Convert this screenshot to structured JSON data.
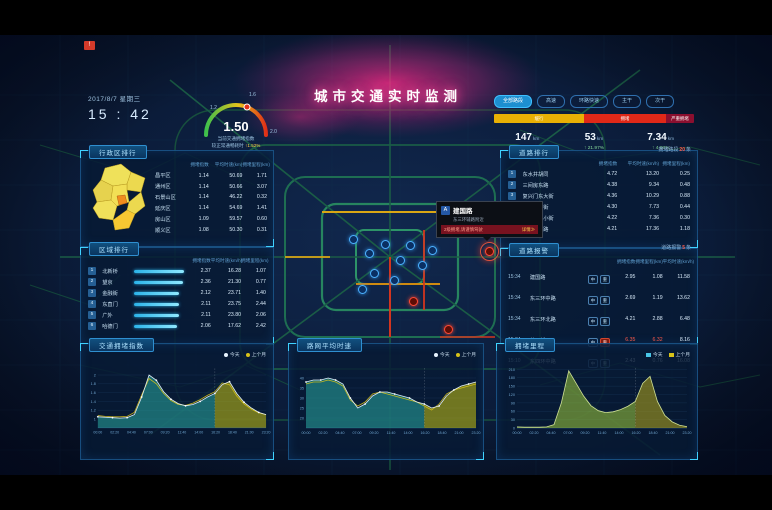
{
  "meta": {
    "date": "2017/8/7 星期三",
    "time": "15 : 42",
    "alert_flag": "!"
  },
  "title": "城市交通实时监测",
  "gauge": {
    "value": "1.50",
    "ticks": [
      "1.2",
      "1.6",
      "2.0"
    ],
    "label1": "当前交通拥堵指数",
    "label2_prefix": "较正常通畅耗时",
    "label2_delta": "↑1.52%"
  },
  "road_filters": {
    "buttons": [
      {
        "label": "全部路段",
        "active": true
      },
      {
        "label": "高速",
        "active": false
      },
      {
        "label": "环路快速",
        "active": false
      },
      {
        "label": "主干",
        "active": false
      },
      {
        "label": "次干",
        "active": false
      }
    ]
  },
  "congestion_bar": {
    "segments": [
      {
        "label": "缓行",
        "color": "#e8b004",
        "pct": 45
      },
      {
        "label": "拥堵",
        "color": "#e02818",
        "pct": 41
      },
      {
        "label": "严重拥堵",
        "color": "#8b0f2f",
        "pct": 14
      }
    ],
    "stats": [
      {
        "value": "147",
        "unit": "km",
        "delta": "↑ 24.98%"
      },
      {
        "value": "53",
        "unit": "km",
        "delta": "↑ 21.97%"
      },
      {
        "value": "7.34",
        "unit": "km",
        "delta": "↑ 4.08%"
      }
    ]
  },
  "district_panel": {
    "title": "行政区排行",
    "headers": [
      "拥堵指数",
      "平均时速(km)",
      "拥堵里程(km)"
    ],
    "rows": [
      {
        "name": "昌平区",
        "values": [
          "1.14",
          "50.69",
          "1.71"
        ]
      },
      {
        "name": "通州区",
        "values": [
          "1.14",
          "50.66",
          "3.07"
        ]
      },
      {
        "name": "石景山区",
        "values": [
          "1.14",
          "46.22",
          "0.32"
        ]
      },
      {
        "name": "延庆区",
        "values": [
          "1.14",
          "54.69",
          "1.41"
        ]
      },
      {
        "name": "房山区",
        "values": [
          "1.09",
          "59.57",
          "0.60"
        ]
      },
      {
        "name": "顺义区",
        "values": [
          "1.08",
          "50.30",
          "0.31"
        ]
      }
    ]
  },
  "area_panel": {
    "title": "区域排行",
    "headers": [
      "拥堵指数",
      "平均时速(km/h)",
      "拥堵里程(km)"
    ],
    "rows": [
      {
        "rank": "1",
        "name": "北新桥",
        "bar_pct": 100,
        "values": [
          "2.37",
          "16.28",
          "1.07"
        ]
      },
      {
        "rank": "2",
        "name": "望京",
        "bar_pct": 98,
        "values": [
          "2.36",
          "21.30",
          "0.77"
        ]
      },
      {
        "rank": "3",
        "name": "金融街",
        "bar_pct": 90,
        "values": [
          "2.12",
          "23.71",
          "1.40"
        ]
      },
      {
        "rank": "4",
        "name": "东直门",
        "bar_pct": 89,
        "values": [
          "2.11",
          "23.75",
          "2.44"
        ]
      },
      {
        "rank": "5",
        "name": "广外",
        "bar_pct": 89,
        "values": [
          "2.11",
          "23.80",
          "2.06"
        ]
      },
      {
        "rank": "6",
        "name": "哈德门",
        "bar_pct": 86,
        "values": [
          "2.06",
          "17.62",
          "2.42"
        ]
      }
    ]
  },
  "road_panel": {
    "title": "道路排行",
    "note_prefix": "拥堵路段",
    "note_count": "20",
    "note_suffix": "条",
    "headers": [
      "拥堵指数",
      "平均时速(km/h)",
      "拥堵里程(km)"
    ],
    "rows": [
      {
        "rank": "1",
        "name": "东水井胡同",
        "values": [
          "4.72",
          "13.20",
          "0.25"
        ]
      },
      {
        "rank": "2",
        "name": "三间房东路",
        "values": [
          "4.38",
          "9.34",
          "0.48"
        ]
      },
      {
        "rank": "3",
        "name": "复兴门东大街",
        "values": [
          "4.36",
          "10.29",
          "0.88"
        ]
      },
      {
        "rank": "4",
        "name": "西单北大街",
        "values": [
          "4.30",
          "7.73",
          "0.44"
        ]
      },
      {
        "rank": "5",
        "name": "西直门南小街",
        "values": [
          "4.22",
          "7.36",
          "0.30"
        ]
      },
      {
        "rank": "6",
        "name": "东三环中路",
        "values": [
          "4.21",
          "17.36",
          "1.18"
        ]
      }
    ]
  },
  "alert_panel": {
    "title": "道路报警",
    "note_prefix": "道路报警",
    "note_count": "5",
    "note_suffix": "条",
    "headers": [
      "拥堵指数",
      "拥堵里程(km)",
      "平均时速(km/h)"
    ],
    "rows": [
      {
        "time": "15:34",
        "name": "建国路",
        "badges": [
          "中",
          "重"
        ],
        "values": [
          "2.95",
          "1.08",
          "11.58"
        ],
        "alert": false
      },
      {
        "time": "15:34",
        "name": "东三环中路",
        "badges": [
          "中",
          "重"
        ],
        "values": [
          "2.69",
          "1.19",
          "13.62"
        ],
        "alert": false
      },
      {
        "time": "15:34",
        "name": "东三环北路",
        "badges": [
          "中",
          "重"
        ],
        "values": [
          "4.21",
          "2.88",
          "6.48"
        ],
        "alert": false
      },
      {
        "time": "15:34",
        "name": "莲玉桥西",
        "badges": [
          "中",
          "重"
        ],
        "values": [
          "6.35",
          "6.32",
          "8.16"
        ],
        "alert": true
      },
      {
        "time": "15:10",
        "name": "东四环中路",
        "badges": [
          "中",
          "重"
        ],
        "values": [
          "2.43",
          "0.76",
          "16.08"
        ],
        "alert": false
      }
    ]
  },
  "tooltip": {
    "icon": "A",
    "name": "建国路",
    "sub": "东三环辅路附近",
    "alert_text": "2级拥堵,请谨慎驾驶",
    "more": "详情≫"
  },
  "chart_data": [
    {
      "type": "area",
      "title": "交通拥堵指数",
      "legend": [
        "今天",
        "上个月"
      ],
      "legend_style": "dot",
      "x": [
        "00:00",
        "02:20",
        "04:40",
        "07:00",
        "09:20",
        "11:40",
        "14:00",
        "16:20",
        "18:40",
        "21:00",
        "23:20"
      ],
      "ylim": [
        0.8,
        2.15
      ],
      "yticks": [
        2,
        1.8,
        1.6,
        1.4,
        1.2,
        1
      ],
      "split_index": 16,
      "dots": true,
      "series": [
        {
          "name": "今天",
          "values": [
            1.05,
            1.04,
            1.03,
            1.02,
            1.03,
            1.1,
            1.5,
            2.0,
            1.88,
            1.62,
            1.45,
            1.35,
            1.3,
            1.33,
            1.4,
            1.5,
            1.58,
            1.78,
            1.85,
            1.58,
            1.38,
            1.25,
            1.15,
            1.1
          ]
        },
        {
          "name": "上个月",
          "values": [
            1.08,
            1.06,
            1.05,
            1.05,
            1.06,
            1.15,
            1.55,
            1.92,
            1.8,
            1.58,
            1.42,
            1.33,
            1.31,
            1.36,
            1.44,
            1.54,
            1.62,
            1.82,
            1.78,
            1.52,
            1.34,
            1.22,
            1.14,
            1.1
          ]
        }
      ]
    },
    {
      "type": "area",
      "title": "路网平均时速",
      "legend": [
        "今天",
        "上个月"
      ],
      "legend_style": "dot",
      "x": [
        "00:00",
        "02:20",
        "04:40",
        "07:00",
        "09:20",
        "11:40",
        "14:00",
        "16:20",
        "18:40",
        "21:00",
        "23:20"
      ],
      "ylim": [
        15,
        45
      ],
      "yticks": [
        40,
        35,
        30,
        25,
        20
      ],
      "split_index": 16,
      "dots": true,
      "series": [
        {
          "name": "今天",
          "values": [
            38,
            39,
            39,
            40,
            39,
            37,
            30,
            25,
            27,
            31,
            33,
            33,
            32,
            31,
            30,
            28,
            27,
            25,
            26,
            31,
            34,
            36,
            37,
            38
          ]
        },
        {
          "name": "上个月",
          "values": [
            37,
            38,
            38,
            39,
            38,
            36,
            29,
            26,
            28,
            32,
            33,
            32,
            31,
            30,
            29,
            28,
            26,
            24,
            27,
            32,
            34,
            35,
            36,
            37
          ]
        }
      ]
    },
    {
      "type": "area",
      "title": "拥堵里程",
      "legend": [
        "今天",
        "上个月"
      ],
      "legend_style": "square",
      "x": [
        "00:00",
        "02:20",
        "04:40",
        "07:00",
        "09:20",
        "11:40",
        "14:00",
        "16:20",
        "18:40",
        "21:00",
        "23:20"
      ],
      "ylim": [
        0,
        215
      ],
      "yticks": [
        210,
        180,
        150,
        120,
        90,
        60,
        30,
        0
      ],
      "split_index": 16,
      "dots": false,
      "series": [
        {
          "name": "今天",
          "values": [
            4,
            3,
            3,
            3,
            4,
            12,
            90,
            205,
            160,
            115,
            80,
            62,
            55,
            58,
            66,
            78,
            95,
            160,
            185,
            95,
            45,
            22,
            10,
            5
          ]
        }
      ]
    }
  ]
}
